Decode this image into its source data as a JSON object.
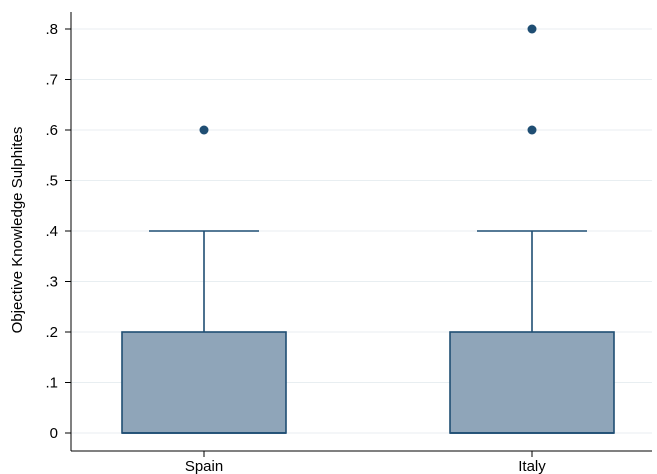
{
  "chart_data": {
    "type": "box",
    "ylabel": "Objective Knowledge Sulphites",
    "xlabel": "",
    "ylim": [
      0,
      0.8
    ],
    "y_ticks": [
      {
        "value": 0,
        "label": "0"
      },
      {
        "value": 0.1,
        "label": ".1"
      },
      {
        "value": 0.2,
        "label": ".2"
      },
      {
        "value": 0.3,
        "label": ".3"
      },
      {
        "value": 0.4,
        "label": ".4"
      },
      {
        "value": 0.5,
        "label": ".5"
      },
      {
        "value": 0.6,
        "label": ".6"
      },
      {
        "value": 0.7,
        "label": ".7"
      },
      {
        "value": 0.8,
        "label": ".8"
      }
    ],
    "categories": [
      "Spain",
      "Italy"
    ],
    "boxes": [
      {
        "category": "Spain",
        "whisker_low": 0,
        "q1": 0,
        "median": 0,
        "q3": 0.2,
        "whisker_high": 0.4,
        "outliers": [
          0.6
        ]
      },
      {
        "category": "Italy",
        "whisker_low": 0,
        "q1": 0,
        "median": 0,
        "q3": 0.2,
        "whisker_high": 0.4,
        "outliers": [
          0.6,
          0.8
        ]
      }
    ],
    "grid": true,
    "colors": {
      "box_fill": "#8fa5b9",
      "box_stroke": "#1f4e73",
      "outlier": "#1f4e73",
      "grid": "#e8eef1"
    }
  }
}
